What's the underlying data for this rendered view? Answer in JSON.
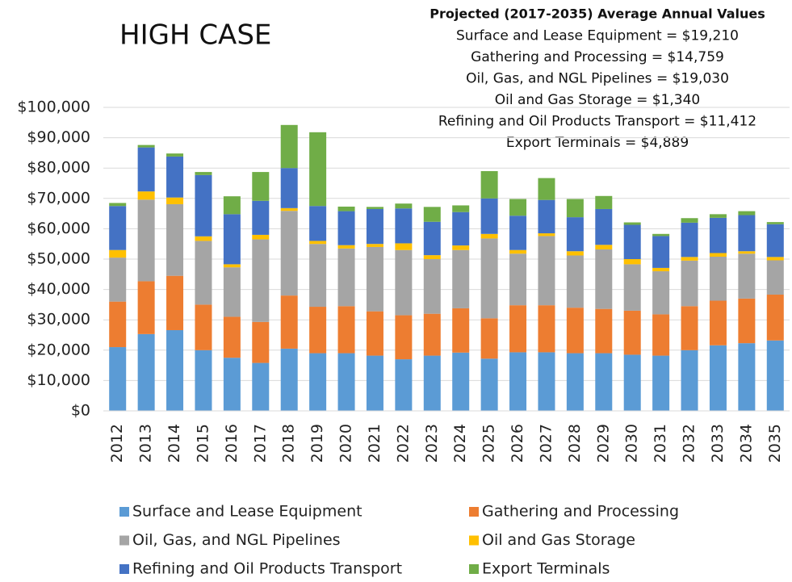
{
  "chart_data": {
    "type": "stacked_bar",
    "title": "HIGH CASE",
    "annotations": [
      "Projected (2017-2035) Average Annual Values",
      "Surface and Lease Equipment = $19,210",
      "Gathering and Processing = $14,759",
      "Oil, Gas, and NGL Pipelines = $19,030",
      "Oil and Gas Storage  = $1,340",
      "Refining and Oil Products Transport = $11,412",
      "Export Terminals = $4,889"
    ],
    "categories": [
      "2012",
      "2013",
      "2014",
      "2015",
      "2016",
      "2017",
      "2018",
      "2019",
      "2020",
      "2021",
      "2022",
      "2023",
      "2024",
      "2025",
      "2026",
      "2027",
      "2028",
      "2029",
      "2030",
      "2031",
      "2032",
      "2033",
      "2034",
      "2035"
    ],
    "series": [
      {
        "name": "Surface and Lease Equipment",
        "color": "#5b9bd5",
        "values": [
          21000,
          25300,
          26600,
          20000,
          17500,
          15800,
          20500,
          19000,
          19000,
          18200,
          17000,
          18200,
          19200,
          17200,
          19300,
          19300,
          19000,
          19000,
          18500,
          18200,
          20000,
          21600,
          22300,
          23200
        ]
      },
      {
        "name": "Gathering and Processing",
        "color": "#ed7d31",
        "values": [
          15000,
          17400,
          17900,
          15000,
          13500,
          13500,
          17500,
          15300,
          15500,
          14600,
          14500,
          13800,
          14600,
          13300,
          15500,
          15500,
          15000,
          14600,
          14500,
          13600,
          14500,
          14700,
          14700,
          15100
        ]
      },
      {
        "name": "Oil, Gas, and NGL Pipelines",
        "color": "#a5a5a5",
        "values": [
          14500,
          26900,
          23600,
          21000,
          16300,
          27200,
          27900,
          20700,
          19000,
          21200,
          21500,
          18000,
          19200,
          26300,
          17000,
          22800,
          17200,
          19600,
          15300,
          14200,
          15000,
          14500,
          14800,
          11300
        ]
      },
      {
        "name": "Oil and Gas Storage",
        "color": "#ffc000",
        "values": [
          2500,
          2700,
          2200,
          1500,
          1000,
          1500,
          900,
          1000,
          1100,
          1000,
          2200,
          1300,
          1500,
          1500,
          1200,
          900,
          1400,
          1500,
          1700,
          1100,
          1200,
          1200,
          800,
          1100
        ]
      },
      {
        "name": "Refining and Oil Products Transport",
        "color": "#4472c4",
        "values": [
          14500,
          14500,
          13500,
          20200,
          16500,
          11200,
          13200,
          11500,
          11200,
          11500,
          11500,
          11000,
          11000,
          11700,
          11300,
          11000,
          11200,
          11800,
          11300,
          10500,
          11300,
          11600,
          11900,
          10800
        ]
      },
      {
        "name": "Export Terminals",
        "color": "#70ad47",
        "values": [
          1000,
          800,
          1000,
          1000,
          5900,
          9500,
          14200,
          24300,
          1500,
          700,
          1600,
          4900,
          2200,
          9000,
          5500,
          7200,
          6000,
          4300,
          800,
          700,
          1500,
          1200,
          1300,
          700
        ]
      }
    ],
    "ylim": [
      0,
      100000
    ],
    "yticks": [
      {
        "value": 0,
        "label": "$0"
      },
      {
        "value": 10000,
        "label": "$10,000"
      },
      {
        "value": 20000,
        "label": "$20,000"
      },
      {
        "value": 30000,
        "label": "$30,000"
      },
      {
        "value": 40000,
        "label": "$40,000"
      },
      {
        "value": 50000,
        "label": "$50,000"
      },
      {
        "value": 60000,
        "label": "$60,000"
      },
      {
        "value": 70000,
        "label": "$70,000"
      },
      {
        "value": 80000,
        "label": "$80,000"
      },
      {
        "value": 90000,
        "label": "$90,000"
      },
      {
        "value": 100000,
        "label": "$100,000"
      }
    ],
    "grid": true,
    "legend": "bottom"
  }
}
